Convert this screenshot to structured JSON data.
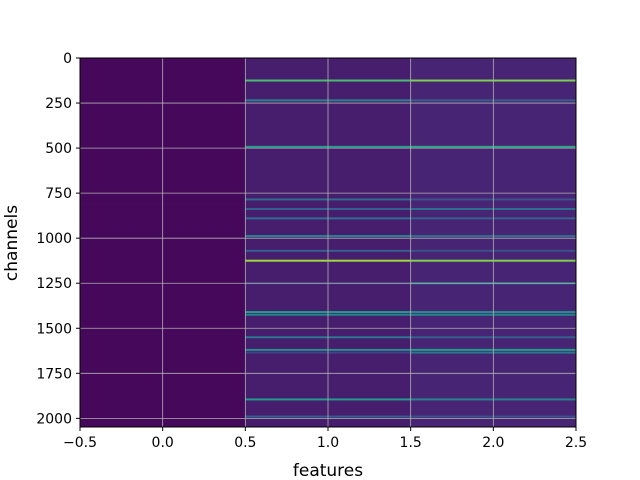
{
  "chart_data": {
    "type": "heatmap",
    "colormap": "viridis",
    "xlabel": "features",
    "ylabel": "channels",
    "xlim": [
      -0.5,
      2.5
    ],
    "ylim": [
      2048,
      0
    ],
    "x_ticks": [
      -0.5,
      0.0,
      0.5,
      1.0,
      1.5,
      2.0,
      2.5
    ],
    "x_tick_labels": [
      "−0.5",
      "0.0",
      "0.5",
      "1.0",
      "1.5",
      "2.0",
      "2.5"
    ],
    "y_ticks": [
      0,
      250,
      500,
      750,
      1000,
      1250,
      1500,
      1750,
      2000
    ],
    "y_tick_labels": [
      "0",
      "250",
      "500",
      "750",
      "1000",
      "1250",
      "1500",
      "1750",
      "2000"
    ],
    "grid": true,
    "columns": [
      0,
      1,
      2
    ],
    "n_channels": 2048,
    "column_base_values": [
      0.02,
      0.08,
      0.1
    ],
    "highlighted_channels": [
      {
        "channel": 125,
        "values": [
          0.02,
          0.7,
          0.8
        ]
      },
      {
        "channel": 235,
        "values": [
          0.02,
          0.45,
          0.3
        ]
      },
      {
        "channel": 493,
        "values": [
          0.02,
          0.55,
          0.6
        ]
      },
      {
        "channel": 785,
        "values": [
          0.02,
          0.35,
          0.25
        ]
      },
      {
        "channel": 838,
        "values": [
          0.02,
          0.3,
          0.35
        ]
      },
      {
        "channel": 890,
        "values": [
          0.02,
          0.35,
          0.3
        ]
      },
      {
        "channel": 988,
        "values": [
          0.02,
          0.45,
          0.35
        ]
      },
      {
        "channel": 1070,
        "values": [
          0.02,
          0.3,
          0.25
        ]
      },
      {
        "channel": 1125,
        "values": [
          0.02,
          0.85,
          0.8
        ]
      },
      {
        "channel": 1250,
        "values": [
          0.02,
          0.2,
          0.45
        ]
      },
      {
        "channel": 1410,
        "values": [
          0.02,
          0.55,
          0.5
        ]
      },
      {
        "channel": 1425,
        "values": [
          0.02,
          0.45,
          0.45
        ]
      },
      {
        "channel": 1550,
        "values": [
          0.02,
          0.4,
          0.3
        ]
      },
      {
        "channel": 1620,
        "values": [
          0.02,
          0.5,
          0.55
        ]
      },
      {
        "channel": 1635,
        "values": [
          0.02,
          0.2,
          0.4
        ]
      },
      {
        "channel": 1895,
        "values": [
          0.02,
          0.55,
          0.45
        ]
      },
      {
        "channel": 1990,
        "values": [
          0.02,
          0.3,
          0.25
        ]
      }
    ]
  }
}
